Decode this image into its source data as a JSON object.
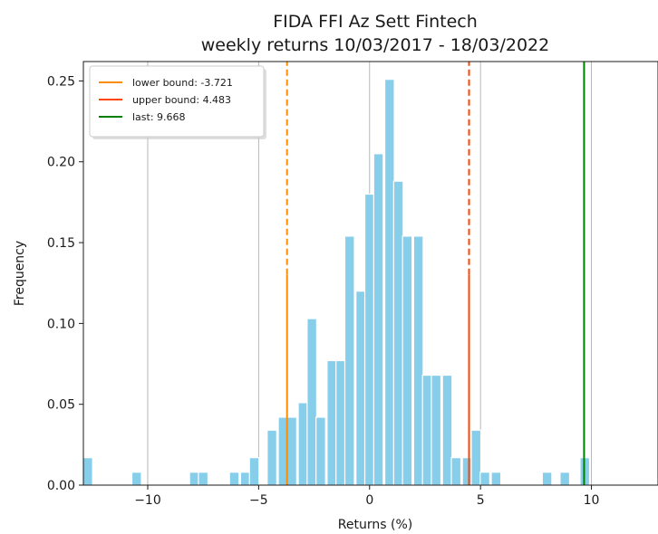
{
  "chart_data": {
    "type": "bar",
    "title": "FIDA FFI Az Sett Fintech",
    "subtitle": "weekly returns 10/03/2017 - 18/03/2022",
    "xlabel": "Returns (%)",
    "ylabel": "Frequency",
    "xlim": [
      -12.9,
      13
    ],
    "ylim": [
      0,
      0.262
    ],
    "xticks": [
      -10,
      -5,
      0,
      5,
      10
    ],
    "xtick_labels": [
      "−10",
      "−5",
      "0",
      "5",
      "10"
    ],
    "yticks": [
      0.0,
      0.05,
      0.1,
      0.15,
      0.2,
      0.25
    ],
    "ytick_labels": [
      "0.00",
      "0.05",
      "0.10",
      "0.15",
      "0.20",
      "0.25"
    ],
    "grid": "vertical",
    "bar_color": "#87ceeb",
    "bins": [
      {
        "x": -12.7,
        "y": 0.017
      },
      {
        "x": -10.5,
        "y": 0.008
      },
      {
        "x": -7.9,
        "y": 0.008
      },
      {
        "x": -7.5,
        "y": 0.008
      },
      {
        "x": -6.1,
        "y": 0.008
      },
      {
        "x": -5.6,
        "y": 0.008
      },
      {
        "x": -5.2,
        "y": 0.017
      },
      {
        "x": -4.4,
        "y": 0.034
      },
      {
        "x": -3.9,
        "y": 0.042
      },
      {
        "x": -3.5,
        "y": 0.042
      },
      {
        "x": -3.0,
        "y": 0.051
      },
      {
        "x": -2.6,
        "y": 0.103
      },
      {
        "x": -2.2,
        "y": 0.042
      },
      {
        "x": -1.7,
        "y": 0.077
      },
      {
        "x": -1.3,
        "y": 0.077
      },
      {
        "x": -0.9,
        "y": 0.154
      },
      {
        "x": -0.4,
        "y": 0.12
      },
      {
        "x": 0.0,
        "y": 0.18
      },
      {
        "x": 0.4,
        "y": 0.205
      },
      {
        "x": 0.9,
        "y": 0.251
      },
      {
        "x": 1.3,
        "y": 0.188
      },
      {
        "x": 1.7,
        "y": 0.154
      },
      {
        "x": 2.2,
        "y": 0.154
      },
      {
        "x": 2.6,
        "y": 0.068
      },
      {
        "x": 3.0,
        "y": 0.068
      },
      {
        "x": 3.5,
        "y": 0.068
      },
      {
        "x": 3.9,
        "y": 0.017
      },
      {
        "x": 4.4,
        "y": 0.017
      },
      {
        "x": 4.8,
        "y": 0.034
      },
      {
        "x": 5.2,
        "y": 0.008
      },
      {
        "x": 5.7,
        "y": 0.008
      },
      {
        "x": 8.0,
        "y": 0.008
      },
      {
        "x": 8.8,
        "y": 0.008
      },
      {
        "x": 9.7,
        "y": 0.017
      }
    ],
    "vlines": [
      {
        "name": "lower bound: -3.721",
        "x": -3.721,
        "color": "#ff8c00",
        "dashed_from": 0.13,
        "dashed_to": 0.262
      },
      {
        "name": "upper bound: 4.483",
        "x": 4.483,
        "color": "#ff4500",
        "dashed_from": 0.13,
        "dashed_to": 0.262
      },
      {
        "name": "last: 9.668",
        "x": 9.668,
        "color": "#008000",
        "dashed_from": null,
        "dashed_to": null
      }
    ],
    "legend": "top-left"
  }
}
